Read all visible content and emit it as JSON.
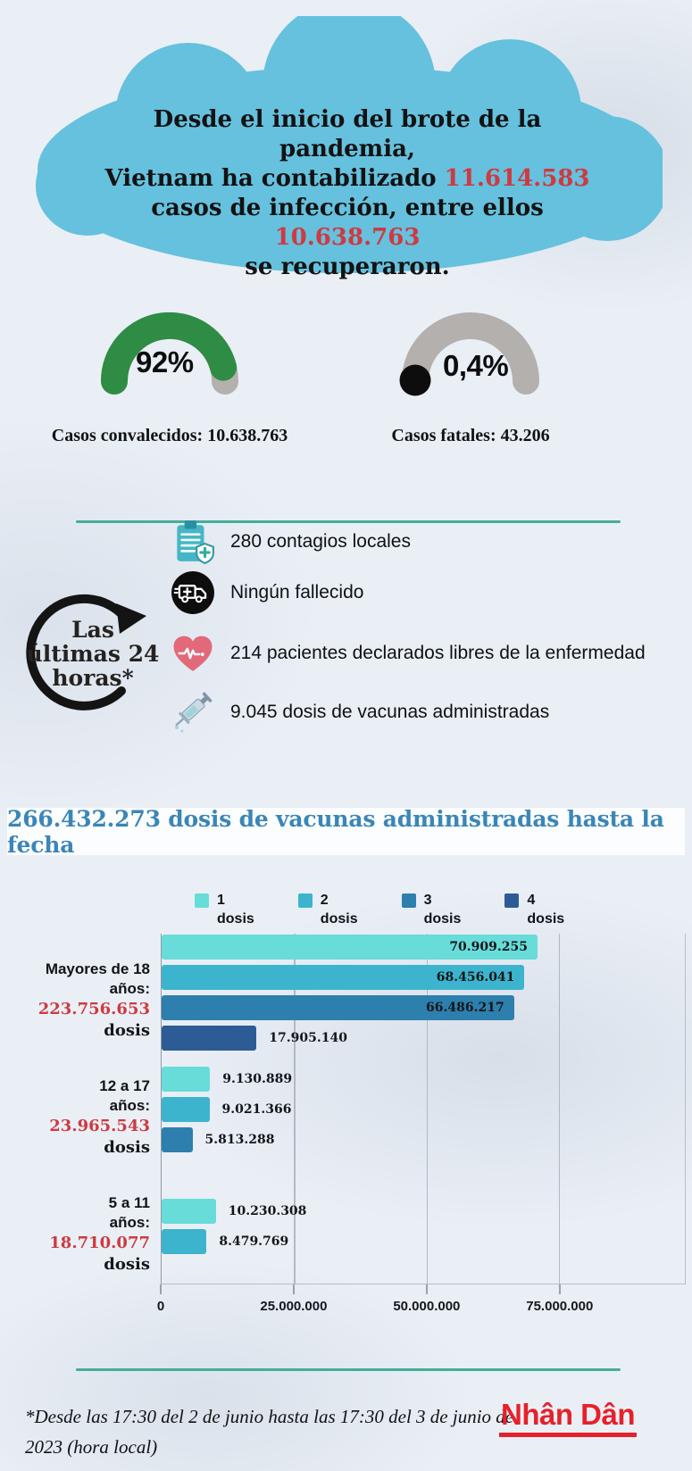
{
  "colors": {
    "cloud_blue": "#65c1de",
    "accent_red": "#ce3a40",
    "title_blue": "#3a86b8",
    "divider_teal": "#45ad97",
    "logo_red": "#e62129"
  },
  "cloud": {
    "line1": "Desde el inicio del brote de la pandemia,",
    "line2_text": "Vietnam ha contabilizado ",
    "line2_number": "11.614.583",
    "line3_text": "casos de infección, entre ellos ",
    "line3_number": "10.638.763",
    "line4": "se recuperaron."
  },
  "last24": {
    "title_line1": "Las",
    "title_line2": "últimas 24",
    "title_line3": "horas*",
    "items": [
      {
        "icon": "clipboard-report-icon",
        "text": "280 contagios locales"
      },
      {
        "icon": "ambulance-icon",
        "text": "Ningún fallecido"
      },
      {
        "icon": "heart-ekg-icon",
        "text": "214 pacientes declarados libres de la enfermedad"
      },
      {
        "icon": "syringe-icon",
        "text": "9.045 dosis de vacunas administradas"
      }
    ]
  },
  "chart_data": [
    {
      "type": "gauge",
      "value_percent": 92,
      "value_label": "92%",
      "caption": "Casos convalecidos: 10.638.763",
      "arc_color": "#2e8c44",
      "track_color": "#b3b0ae"
    },
    {
      "type": "gauge",
      "value_percent": 0.4,
      "value_label": "0,4%",
      "caption": "Casos fatales: 43.206",
      "arc_color": "#0d0d0d",
      "track_color": "#b3b0ae"
    },
    {
      "type": "bar",
      "orientation": "horizontal",
      "title": "266.432.273 dosis de vacunas administradas hasta la fecha",
      "grid": true,
      "legend_position": "top",
      "x_axis_max": 98700000,
      "x_ticks": [
        {
          "label": "0",
          "value": 0
        },
        {
          "label": "25.000.000",
          "value": 25000000
        },
        {
          "label": "50.000.000",
          "value": 50000000
        },
        {
          "label": "75.000.000",
          "value": 75000000
        }
      ],
      "legend": [
        {
          "label_top": "1",
          "label_bottom": "dosis",
          "color": "#67dcd9"
        },
        {
          "label_top": "2",
          "label_bottom": "dosis",
          "color": "#3cb4cd"
        },
        {
          "label_top": "3",
          "label_bottom": "dosis",
          "color": "#2d7fad"
        },
        {
          "label_top": "4",
          "label_bottom": "dosis",
          "color": "#2d5b96"
        }
      ],
      "groups": [
        {
          "name_lines": [
            "Mayores de 18",
            "años:"
          ],
          "total_number": "223.756.653",
          "total_suffix": "dosis",
          "bars": [
            {
              "series": "1 dosis",
              "value": 70909255,
              "label": "70.909.255"
            },
            {
              "series": "2 dosis",
              "value": 68456041,
              "label": "68.456.041"
            },
            {
              "series": "3 dosis",
              "value": 66486217,
              "label": "66.486.217"
            },
            {
              "series": "4 dosis",
              "value": 17905140,
              "label": "17.905.140"
            }
          ]
        },
        {
          "name_lines": [
            "12 a 17",
            "años:"
          ],
          "total_number": "23.965.543",
          "total_suffix": "dosis",
          "bars": [
            {
              "series": "1 dosis",
              "value": 9130889,
              "label": "9.130.889"
            },
            {
              "series": "2 dosis",
              "value": 9021366,
              "label": "9.021.366"
            },
            {
              "series": "3 dosis",
              "value": 5813288,
              "label": "5.813.288"
            }
          ]
        },
        {
          "name_lines": [
            "5 a 11",
            "años:"
          ],
          "total_number": "18.710.077",
          "total_suffix": "dosis",
          "bars": [
            {
              "series": "1 dosis",
              "value": 10230308,
              "label": "10.230.308"
            },
            {
              "series": "2 dosis",
              "value": 8479769,
              "label": "8.479.769"
            }
          ]
        }
      ]
    }
  ],
  "footer": {
    "note_line1": "*Desde las 17:30 del 2 de junio hasta las 17:30 del 3  de junio de",
    "note_line2": "2023 (hora local)",
    "logo_text": "Nhân Dân"
  }
}
